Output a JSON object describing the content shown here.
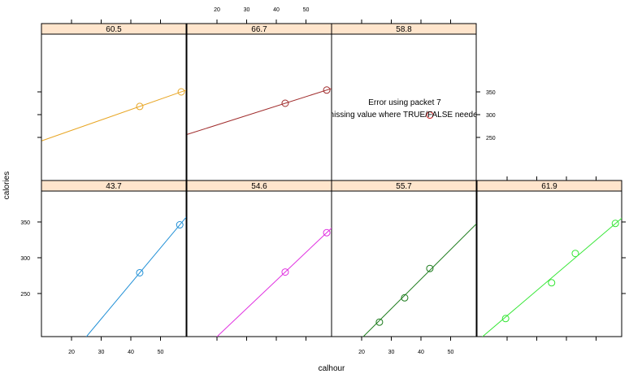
{
  "chart_data": {
    "type": "scatter",
    "xlabel": "calhour",
    "ylabel": "calories",
    "xlim": [
      10,
      60
    ],
    "ylim": [
      200,
      365
    ],
    "x_ticks": [
      20,
      30,
      40,
      50
    ],
    "y_ticks": [
      250,
      300,
      350
    ],
    "colors": {
      "strip": "#ffe5cc",
      "panel_border": "#000000"
    },
    "error_message": {
      "line1": "Error using packet 7",
      "line2": "missing value where TRUE/FALSE needed"
    },
    "panels": [
      {
        "label": "60.5",
        "row": "top",
        "col": 0,
        "color": "#e8a624",
        "points": [
          {
            "x": 43.0,
            "y": 318
          },
          {
            "x": 57.0,
            "y": 350
          }
        ],
        "fit": {
          "intercept": 219.75,
          "slope": 2.286
        }
      },
      {
        "label": "66.7",
        "row": "top",
        "col": 1,
        "color": "#a02c2c",
        "points": [
          {
            "x": 43.0,
            "y": 325
          },
          {
            "x": 57.0,
            "y": 354
          }
        ],
        "fit": {
          "intercept": 235.93,
          "slope": 2.071
        }
      },
      {
        "label": "58.8",
        "row": "top",
        "col": 2,
        "color": "#cc2222",
        "error": true,
        "points": [
          {
            "x": 43.0,
            "y": 299
          }
        ],
        "fit": null
      },
      {
        "label": "43.7",
        "row": "bottom",
        "col": 0,
        "color": "#1f8fd6",
        "points": [
          {
            "x": 43.0,
            "y": 279
          },
          {
            "x": 56.5,
            "y": 346
          }
        ],
        "fit": {
          "intercept": 65.59,
          "slope": 4.963
        }
      },
      {
        "label": "54.6",
        "row": "bottom",
        "col": 1,
        "color": "#e030e0",
        "points": [
          {
            "x": 43.0,
            "y": 280
          },
          {
            "x": 57.0,
            "y": 335
          }
        ],
        "fit": {
          "intercept": 111.07,
          "slope": 3.929
        }
      },
      {
        "label": "55.7",
        "row": "bottom",
        "col": 2,
        "color": "#1a7a1a",
        "points": [
          {
            "x": 26.0,
            "y": 210
          },
          {
            "x": 34.5,
            "y": 244
          },
          {
            "x": 43.0,
            "y": 285
          }
        ],
        "fit": {
          "intercept": 104.77,
          "slope": 4.133
        }
      },
      {
        "label": "61.9",
        "row": "bottom",
        "col": 3,
        "color": "#33e633",
        "points": [
          {
            "x": 19.5,
            "y": 215
          },
          {
            "x": 35.0,
            "y": 265
          },
          {
            "x": 43.0,
            "y": 306
          },
          {
            "x": 56.5,
            "y": 348
          }
        ],
        "fit": {
          "intercept": 148.41,
          "slope": 3.527
        }
      }
    ]
  }
}
